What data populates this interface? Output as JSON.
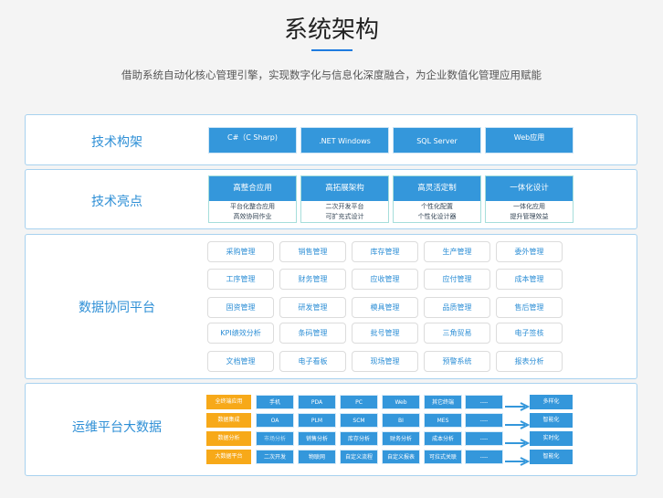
{
  "header": {
    "title": "系统架构",
    "subtitle": "借助系统自动化核心管理引擎，实现数字化与信息化深度融合，为企业数值化管理应用赋能"
  },
  "colors": {
    "accent": "#3497db",
    "orange": "#f7a919",
    "label": "#2e8fd6"
  },
  "tech": {
    "label": "技术构架",
    "items": [
      "C#（C Sharp)",
      ".NET Windows",
      "SQL Server",
      "Web应用"
    ]
  },
  "highlights": {
    "label": "技术亮点",
    "cards": [
      {
        "title": "高整合应用",
        "lines": [
          "平台化整合应用",
          "高效协同作业"
        ]
      },
      {
        "title": "高拓展架构",
        "lines": [
          "二次开发平台",
          "可扩充式设计"
        ]
      },
      {
        "title": "高灵活定制",
        "lines": [
          "个性化配置",
          "个性化设计器"
        ]
      },
      {
        "title": "一体化设计",
        "lines": [
          "一体化应用",
          "提升管理效益"
        ]
      }
    ]
  },
  "platform": {
    "label": "数据协同平台",
    "items": [
      "采购管理",
      "销售管理",
      "库存管理",
      "生产管理",
      "委外管理",
      "工序管理",
      "财务管理",
      "应收管理",
      "应付管理",
      "成本管理",
      "固资管理",
      "研发管理",
      "模具管理",
      "品质管理",
      "售后管理",
      "KPI绩效分析",
      "条码管理",
      "批号管理",
      "三角贸易",
      "电子签核",
      "文档管理",
      "电子看板",
      "现场管理",
      "预警系统",
      "报表分析"
    ]
  },
  "ops": {
    "label": "运维平台大数据",
    "rows": [
      {
        "label": "全终端应用",
        "cells": [
          "手机",
          "PDA",
          "PC",
          "Web",
          "其它终端",
          "----"
        ],
        "result": "多样化"
      },
      {
        "label": "数据集成",
        "cells": [
          "OA",
          "PLM",
          "SCM",
          "BI",
          "MES",
          "----"
        ],
        "result": "智能化"
      },
      {
        "label": "数据分析",
        "cells": [
          "市场分析",
          "销售分析",
          "库存分析",
          "财务分析",
          "成本分析",
          "----"
        ],
        "result": "实时化"
      },
      {
        "label": "大数据平台",
        "cells": [
          "二次开发",
          "物联网",
          "自定义流程",
          "自定义报表",
          "可拉式关联",
          "----"
        ],
        "result": "智能化"
      }
    ]
  }
}
